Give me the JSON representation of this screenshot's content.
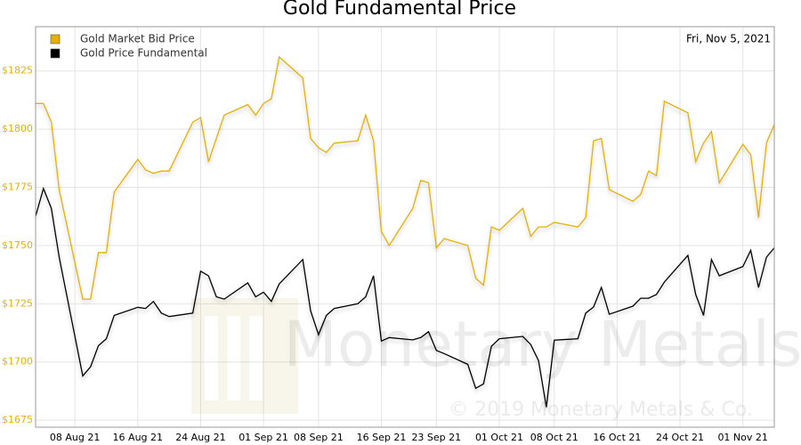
{
  "chart_data": {
    "type": "line",
    "title": "Gold Fundamental Price",
    "annotation": "Fri, Nov 5, 2021",
    "watermark": "Monetary Metals",
    "watermark_footer": "© 2019 Monetary Metals & Co.",
    "x": [
      "2021-08-03",
      "2021-08-04",
      "2021-08-05",
      "2021-08-06",
      "2021-08-09",
      "2021-08-10",
      "2021-08-11",
      "2021-08-12",
      "2021-08-13",
      "2021-08-16",
      "2021-08-17",
      "2021-08-18",
      "2021-08-19",
      "2021-08-20",
      "2021-08-23",
      "2021-08-24",
      "2021-08-25",
      "2021-08-26",
      "2021-08-27",
      "2021-08-30",
      "2021-08-31",
      "2021-09-01",
      "2021-09-02",
      "2021-09-03",
      "2021-09-06",
      "2021-09-07",
      "2021-09-08",
      "2021-09-09",
      "2021-09-10",
      "2021-09-13",
      "2021-09-14",
      "2021-09-15",
      "2021-09-16",
      "2021-09-17",
      "2021-09-20",
      "2021-09-21",
      "2021-09-22",
      "2021-09-23",
      "2021-09-24",
      "2021-09-27",
      "2021-09-28",
      "2021-09-29",
      "2021-09-30",
      "2021-10-01",
      "2021-10-04",
      "2021-10-05",
      "2021-10-06",
      "2021-10-07",
      "2021-10-08",
      "2021-10-11",
      "2021-10-12",
      "2021-10-13",
      "2021-10-14",
      "2021-10-15",
      "2021-10-18",
      "2021-10-19",
      "2021-10-20",
      "2021-10-21",
      "2021-10-22",
      "2021-10-25",
      "2021-10-26",
      "2021-10-27",
      "2021-10-28",
      "2021-10-29",
      "2021-11-01",
      "2021-11-02",
      "2021-11-03",
      "2021-11-04",
      "2021-11-05"
    ],
    "series": [
      {
        "name": "Gold Market Bid Price",
        "color": "#e6b000",
        "values": [
          1811,
          1811,
          1803,
          1774,
          1727,
          1727,
          1747,
          1747,
          1773,
          1787,
          1782.5,
          1781,
          1782,
          1782,
          1803,
          1805,
          1786,
          1796,
          1806,
          1810.5,
          1806,
          1811,
          1813,
          1831,
          1822,
          1796,
          1792,
          1790,
          1794,
          1795,
          1806,
          1795,
          1756,
          1750,
          1766,
          1778,
          1777,
          1749,
          1753,
          1750,
          1736,
          1733,
          1758,
          1756.5,
          1766,
          1754,
          1758,
          1758,
          1760,
          1758,
          1762,
          1795,
          1796,
          1774,
          1769,
          1772,
          1782,
          1780,
          1812,
          1807,
          1786,
          1794,
          1799,
          1777,
          1793.5,
          1789,
          1762,
          1794,
          1802
        ]
      },
      {
        "name": "Gold Price Fundamental",
        "color": "#000000",
        "values": [
          1762.6,
          1774.5,
          1766,
          1745,
          1694,
          1698,
          1707,
          1710,
          1720,
          1723.5,
          1723,
          1726,
          1721,
          1719.5,
          1721,
          1739,
          1737,
          1728,
          1727,
          1734,
          1728,
          1730,
          1726,
          1733.5,
          1744,
          1722,
          1711.7,
          1720,
          1723,
          1725,
          1728,
          1737,
          1709,
          1710.5,
          1709.5,
          1710.5,
          1713,
          1705,
          1703.6,
          1699,
          1688.7,
          1690.6,
          1706.7,
          1710,
          1711,
          1707.5,
          1700.6,
          1680.6,
          1709.4,
          1710,
          1721,
          1723.6,
          1732,
          1720.5,
          1724,
          1727.4,
          1727.4,
          1729,
          1734.3,
          1745.8,
          1729,
          1720,
          1744,
          1737,
          1741,
          1748,
          1732,
          1745,
          1749
        ]
      }
    ],
    "xlim": [
      "2021-08-03",
      "2021-11-05"
    ],
    "xticks": [
      {
        "value": "2021-08-08",
        "label": "08 Aug 21"
      },
      {
        "value": "2021-08-16",
        "label": "16 Aug 21"
      },
      {
        "value": "2021-08-24",
        "label": "24 Aug 21"
      },
      {
        "value": "2021-09-01",
        "label": "01 Sep 21"
      },
      {
        "value": "2021-09-08",
        "label": "08 Sep 21"
      },
      {
        "value": "2021-09-16",
        "label": "16 Sep 21"
      },
      {
        "value": "2021-09-23",
        "label": "23 Sep 21"
      },
      {
        "value": "2021-10-01",
        "label": "01 Oct 21"
      },
      {
        "value": "2021-10-08",
        "label": "08 Oct 21"
      },
      {
        "value": "2021-10-16",
        "label": "16 Oct 21"
      },
      {
        "value": "2021-10-24",
        "label": "24 Oct 21"
      },
      {
        "value": "2021-11-01",
        "label": "01 Nov 21"
      }
    ],
    "ylim": [
      1672,
      1844
    ],
    "yticks": [
      {
        "value": 1675,
        "label": "$1675"
      },
      {
        "value": 1700,
        "label": "$1700"
      },
      {
        "value": 1725,
        "label": "$1725"
      },
      {
        "value": 1750,
        "label": "$1750"
      },
      {
        "value": 1775,
        "label": "$1775"
      },
      {
        "value": 1800,
        "label": "$1800"
      },
      {
        "value": 1825,
        "label": "$1825"
      }
    ],
    "grid": true,
    "legend": "top-left"
  }
}
